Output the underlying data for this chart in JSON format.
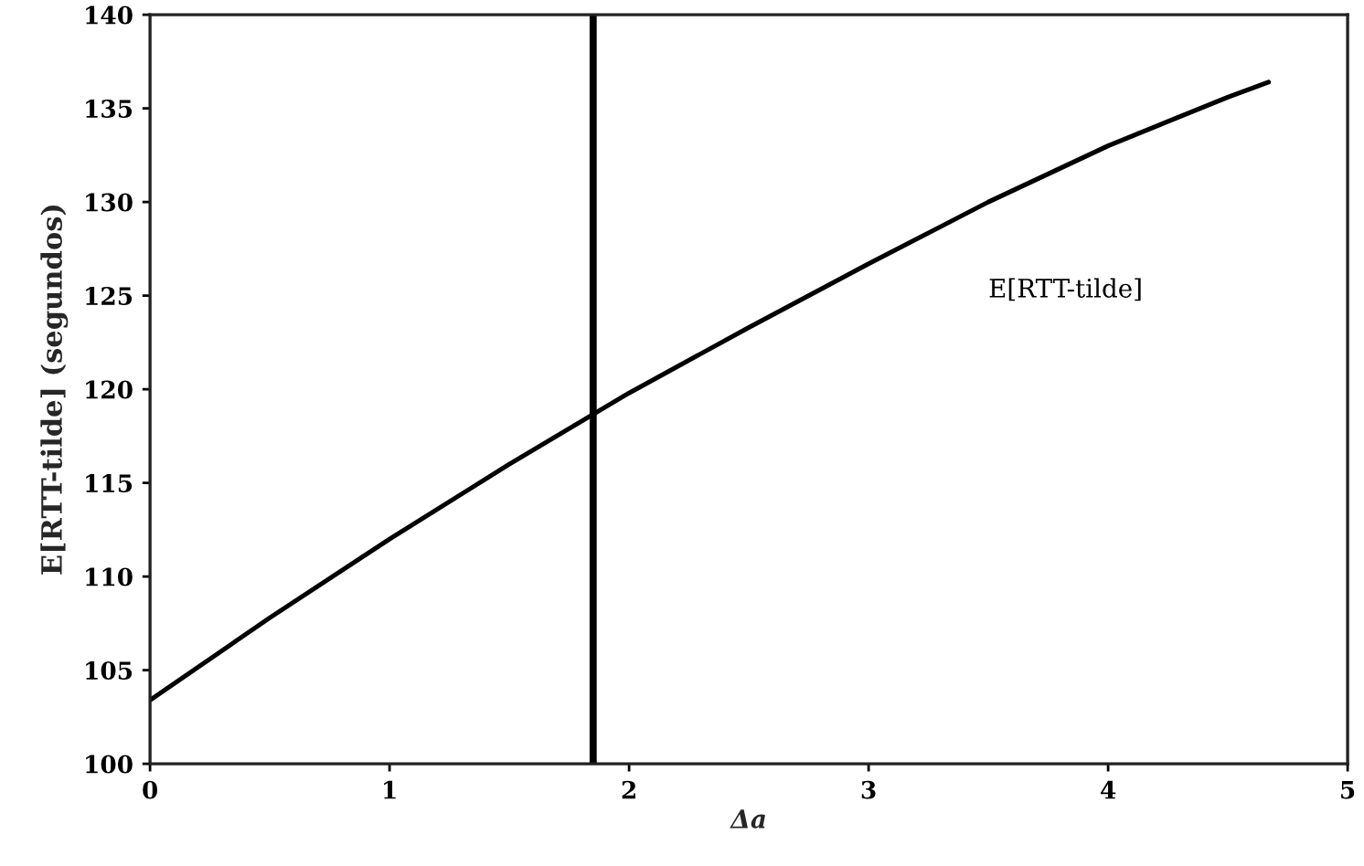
{
  "chart_data": {
    "type": "line",
    "xlabel": "Δa",
    "ylabel": "E[RTT-tilde] (segundos)",
    "x": [
      0,
      0.5,
      1,
      1.5,
      2,
      2.5,
      3,
      3.5,
      4,
      4.5,
      4.67
    ],
    "series": [
      {
        "name": "E[RTT-tilde]",
        "color": "#000000",
        "values": [
          103.4,
          107.8,
          112.0,
          116.0,
          119.8,
          123.3,
          126.7,
          130.0,
          133.0,
          135.6,
          136.4
        ]
      }
    ],
    "xlim": [
      0,
      5
    ],
    "xticks": [
      0,
      1,
      2,
      3,
      4,
      5
    ],
    "ylim": [
      100,
      140
    ],
    "yticks": [
      100,
      105,
      110,
      115,
      120,
      125,
      130,
      135,
      140
    ],
    "ref_lines": [
      {
        "axis": "x",
        "value": 1.85,
        "color": "#000000"
      }
    ],
    "grid": false,
    "legend": false,
    "marker": "none",
    "line_style": "solid"
  }
}
